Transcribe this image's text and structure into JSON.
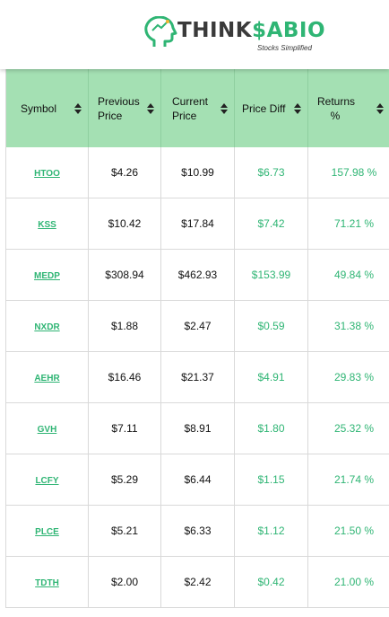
{
  "brand": {
    "name_part1": "THINK",
    "name_part2": "$ABIO",
    "tagline": "Stocks Simplified"
  },
  "table": {
    "headers": [
      {
        "label": "Symbol"
      },
      {
        "label": "Previous Price"
      },
      {
        "label": "Current Price"
      },
      {
        "label": "Price Diff"
      },
      {
        "label": "Returns %"
      }
    ],
    "rows": [
      {
        "symbol": "HTOO",
        "previous": "$4.26",
        "current": "$10.99",
        "diff": "$6.73",
        "returns": "157.98 %"
      },
      {
        "symbol": "KSS",
        "previous": "$10.42",
        "current": "$17.84",
        "diff": "$7.42",
        "returns": "71.21 %"
      },
      {
        "symbol": "MEDP",
        "previous": "$308.94",
        "current": "$462.93",
        "diff": "$153.99",
        "returns": "49.84 %"
      },
      {
        "symbol": "NXDR",
        "previous": "$1.88",
        "current": "$2.47",
        "diff": "$0.59",
        "returns": "31.38 %"
      },
      {
        "symbol": "AEHR",
        "previous": "$16.46",
        "current": "$21.37",
        "diff": "$4.91",
        "returns": "29.83 %"
      },
      {
        "symbol": "GVH",
        "previous": "$7.11",
        "current": "$8.91",
        "diff": "$1.80",
        "returns": "25.32 %"
      },
      {
        "symbol": "LCFY",
        "previous": "$5.29",
        "current": "$6.44",
        "diff": "$1.15",
        "returns": "21.74 %"
      },
      {
        "symbol": "PLCE",
        "previous": "$5.21",
        "current": "$6.33",
        "diff": "$1.12",
        "returns": "21.50 %"
      },
      {
        "symbol": "TDTH",
        "previous": "$2.00",
        "current": "$2.42",
        "diff": "$0.42",
        "returns": "21.00 %"
      }
    ]
  },
  "colors": {
    "header_bg": "#a4e0b3",
    "accent_green": "#2fb574",
    "text": "#111111"
  }
}
